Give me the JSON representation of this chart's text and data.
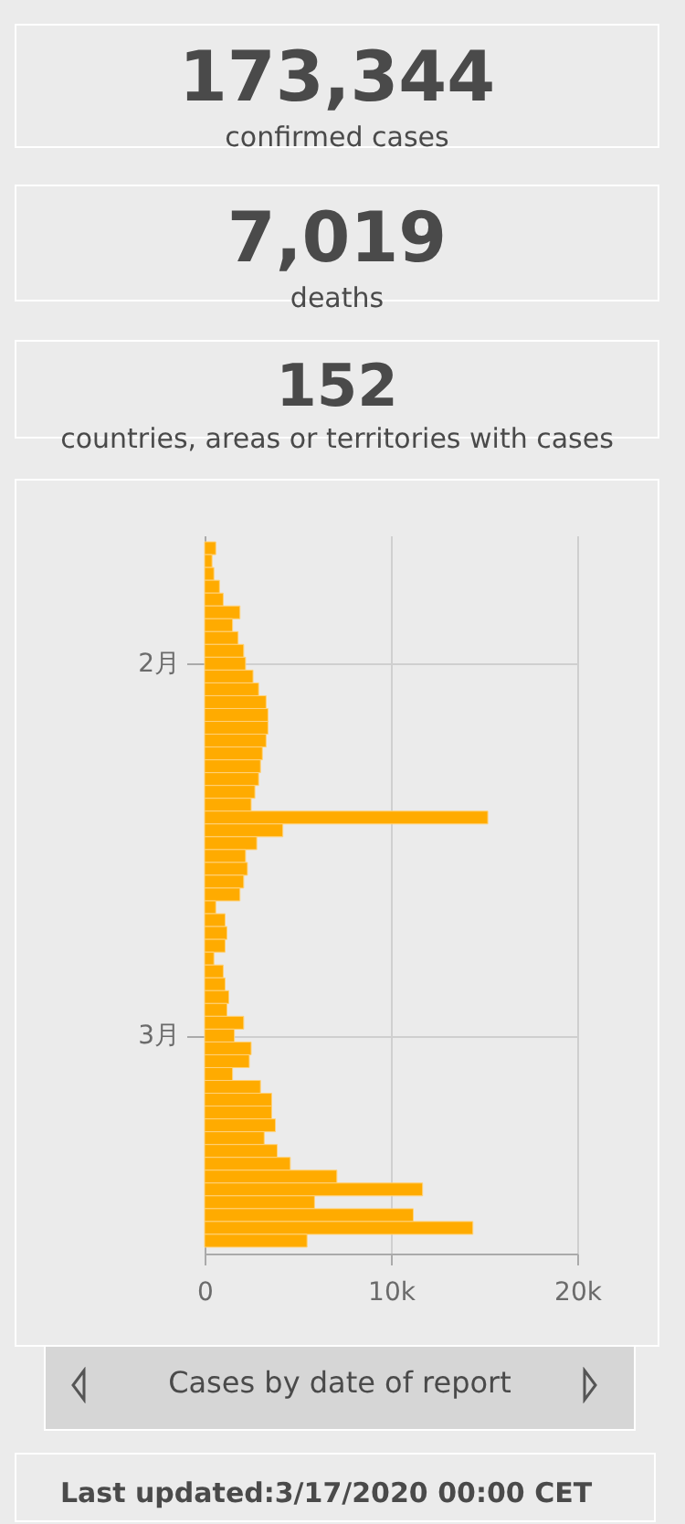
{
  "chart_data": [
    {
      "type": "other",
      "title": "173,344",
      "subtitle": "confirmed cases"
    },
    {
      "type": "other",
      "title": "7,019",
      "subtitle": "deaths"
    },
    {
      "type": "other",
      "title": "152",
      "subtitle": "countries, areas or territories with cases"
    },
    {
      "type": "bar",
      "orientation": "horizontal",
      "grid": true,
      "x": [
        "2020-01-23",
        "2020-01-24",
        "2020-01-25",
        "2020-01-26",
        "2020-01-27",
        "2020-01-28",
        "2020-01-29",
        "2020-01-30",
        "2020-01-31",
        "2020-02-01",
        "2020-02-02",
        "2020-02-03",
        "2020-02-04",
        "2020-02-05",
        "2020-02-06",
        "2020-02-07",
        "2020-02-08",
        "2020-02-09",
        "2020-02-10",
        "2020-02-11",
        "2020-02-12",
        "2020-02-13",
        "2020-02-14",
        "2020-02-15",
        "2020-02-16",
        "2020-02-17",
        "2020-02-18",
        "2020-02-19",
        "2020-02-20",
        "2020-02-21",
        "2020-02-22",
        "2020-02-23",
        "2020-02-24",
        "2020-02-25",
        "2020-02-26",
        "2020-02-27",
        "2020-02-28",
        "2020-02-29",
        "2020-03-01",
        "2020-03-02",
        "2020-03-03",
        "2020-03-04",
        "2020-03-05",
        "2020-03-06",
        "2020-03-07",
        "2020-03-08",
        "2020-03-09",
        "2020-03-10",
        "2020-03-11",
        "2020-03-12",
        "2020-03-13",
        "2020-03-14",
        "2020-03-15",
        "2020-03-16",
        "2020-03-17"
      ],
      "series": [
        {
          "color": "#ffab00",
          "values": [
            600,
            400,
            500,
            800,
            1000,
            1900,
            1500,
            1800,
            2100,
            2200,
            2600,
            2900,
            3300,
            3400,
            3400,
            3300,
            3100,
            3000,
            2900,
            2700,
            2500,
            15200,
            4200,
            2800,
            2200,
            2300,
            2100,
            1900,
            600,
            1100,
            1200,
            1100,
            500,
            1000,
            1100,
            1300,
            1200,
            2100,
            1600,
            2500,
            2400,
            1500,
            3000,
            3600,
            3600,
            3800,
            3200,
            3900,
            4600,
            7100,
            11700,
            5900,
            11200,
            14400,
            5500
          ]
        }
      ],
      "xlim": [
        0,
        20000
      ],
      "xticks": [
        0,
        {
          "value": 10000,
          "label": "10k"
        },
        {
          "value": 20000,
          "label": "20k"
        }
      ],
      "ylim": [
        "2020-03-18",
        "2020-01-22"
      ],
      "yticks": [
        {
          "value": "2020-02-01",
          "label": "2月"
        },
        {
          "value": "2020-03-01",
          "label": "3月"
        }
      ],
      "annotations": [
        "Cases by date of report",
        "Last updated:3/17/2020 00:00 CET"
      ]
    }
  ]
}
